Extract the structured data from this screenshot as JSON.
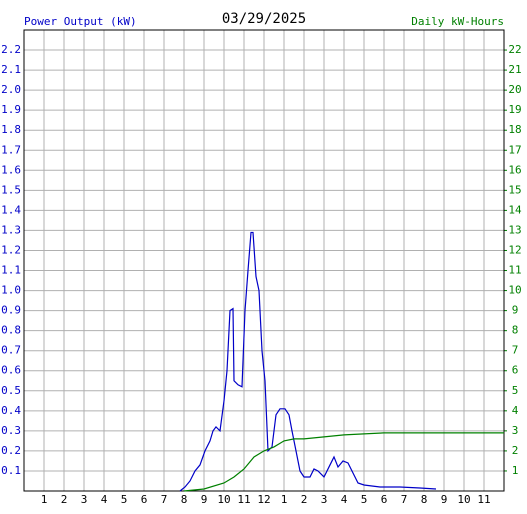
{
  "chart_data": {
    "type": "line",
    "title": "03/29/2025",
    "y_label": "Power Output (kW)",
    "y2_label": "Daily kW-Hours",
    "xlim": [
      0,
      24
    ],
    "xticks": [
      1,
      2,
      3,
      4,
      5,
      6,
      7,
      8,
      9,
      10,
      11,
      12,
      {
        "value": 13,
        "label": "1"
      },
      {
        "value": 14,
        "label": "2"
      },
      {
        "value": 15,
        "label": "3"
      },
      {
        "value": 16,
        "label": "4"
      },
      {
        "value": 17,
        "label": "5"
      },
      {
        "value": 18,
        "label": "6"
      },
      {
        "value": 19,
        "label": "7"
      },
      {
        "value": 20,
        "label": "8"
      },
      {
        "value": 21,
        "label": "9"
      },
      {
        "value": 22,
        "label": "10"
      },
      {
        "value": 23,
        "label": "11"
      }
    ],
    "ylim": [
      0,
      2.3
    ],
    "yticks": [
      0.1,
      0.2,
      0.3,
      0.4,
      0.5,
      0.6,
      0.7,
      0.8,
      0.9,
      {
        "value": 1,
        "label": "1.0"
      },
      1.1,
      1.2,
      1.3,
      1.4,
      1.5,
      1.6,
      1.7,
      1.8,
      1.9,
      {
        "value": 2,
        "label": "2.0"
      },
      2.1,
      2.2
    ],
    "y2lim": [
      0,
      23
    ],
    "y2ticks": [
      1,
      2,
      3,
      4,
      5,
      6,
      7,
      8,
      9,
      10,
      11,
      12,
      13,
      14,
      15,
      16,
      17,
      18,
      19,
      20,
      21,
      22
    ],
    "grid": true,
    "series": [
      {
        "name": "Power Output (kW)",
        "color": "#0000c8",
        "x": [
          7.8,
          8.05,
          8.3,
          8.55,
          8.8,
          9.05,
          9.3,
          9.45,
          9.6,
          9.8,
          10.0,
          10.15,
          10.3,
          10.45,
          10.5,
          10.7,
          10.9,
          11.05,
          11.2,
          11.35,
          11.45,
          11.6,
          11.75,
          11.9,
          12.05,
          12.2,
          12.4,
          12.6,
          12.8,
          13.05,
          13.25,
          13.4,
          13.6,
          13.8,
          14.0,
          14.3,
          14.5,
          14.7,
          15.0,
          15.3,
          15.5,
          15.7,
          15.95,
          16.2,
          16.4,
          16.7,
          17.0,
          17.8,
          18.8,
          19.8,
          20.6
        ],
        "values": [
          0,
          0.02,
          0.05,
          0.1,
          0.13,
          0.2,
          0.25,
          0.3,
          0.32,
          0.3,
          0.45,
          0.6,
          0.9,
          0.91,
          0.55,
          0.53,
          0.52,
          0.9,
          1.1,
          1.29,
          1.29,
          1.07,
          1.0,
          0.7,
          0.55,
          0.2,
          0.22,
          0.38,
          0.41,
          0.41,
          0.38,
          0.3,
          0.2,
          0.1,
          0.07,
          0.07,
          0.11,
          0.1,
          0.07,
          0.13,
          0.17,
          0.12,
          0.15,
          0.14,
          0.1,
          0.04,
          0.03,
          0.02,
          0.02,
          0.015,
          0.01
        ]
      },
      {
        "name": "Daily kW-Hours",
        "color": "#008000",
        "axis": "y2",
        "x": [
          8.0,
          9.0,
          10.0,
          10.5,
          11.0,
          11.5,
          12.0,
          12.5,
          13.0,
          13.5,
          14.0,
          15.0,
          16.0,
          17.0,
          18.0,
          24.0
        ],
        "values": [
          0,
          0.1,
          0.4,
          0.7,
          1.1,
          1.7,
          2.0,
          2.2,
          2.5,
          2.6,
          2.6,
          2.7,
          2.8,
          2.85,
          2.9,
          2.9
        ]
      }
    ]
  }
}
